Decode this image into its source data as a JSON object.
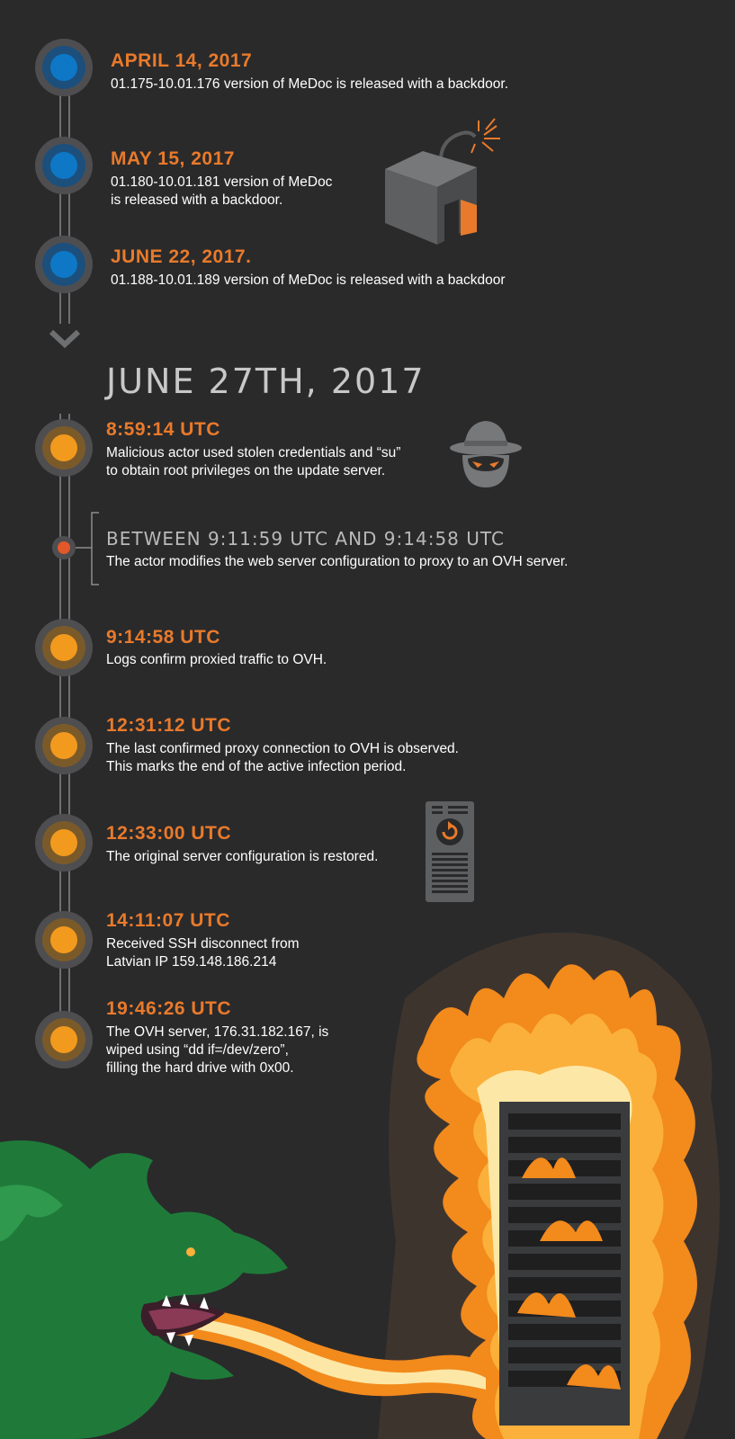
{
  "timeline_prior": [
    {
      "date": "APRIL 14, 2017",
      "desc": [
        "01.175-10.01.176 version of MeDoc is released with a backdoor."
      ]
    },
    {
      "date": "MAY 15, 2017",
      "desc": [
        "01.180-10.01.181 version of MeDoc",
        "is released with a backdoor."
      ]
    },
    {
      "date": "JUNE 22, 2017.",
      "desc": [
        "01.188-10.01.189 version of MeDoc is released with a backdoor"
      ]
    }
  ],
  "day_heading": "JUNE 27TH, 2017",
  "timeline_day": [
    {
      "time": "8:59:14 UTC",
      "desc": [
        "Malicious actor used stolen credentials and “su”",
        "to obtain root privileges on the update server."
      ]
    },
    {
      "time": "BETWEEN 9:11:59 UTC AND 9:14:58 UTC",
      "desc": [
        "The actor modifies the web server configuration to proxy to an OVH server."
      ]
    },
    {
      "time": "9:14:58 UTC",
      "desc": [
        "Logs confirm proxied traffic to OVH."
      ]
    },
    {
      "time": "12:31:12 UTC",
      "desc": [
        "The last confirmed proxy connection to OVH is observed.",
        "This marks the end of the active infection period."
      ]
    },
    {
      "time": "12:33:00 UTC",
      "desc": [
        "The original server configuration is restored."
      ]
    },
    {
      "time": "14:11:07 UTC",
      "desc": [
        "Received SSH disconnect from",
        "Latvian IP 159.148.186.214"
      ]
    },
    {
      "time": "19:46:26 UTC",
      "desc": [
        "The OVH server, 176.31.182.167, is",
        "wiped using “dd if=/dev/zero”,",
        "filling the hard drive with 0x00."
      ]
    }
  ],
  "icons": [
    "bomb-box-icon",
    "hacker-hat-icon",
    "server-restore-icon",
    "dragon-icon",
    "burning-server-icon"
  ],
  "colors": {
    "background": "#2a2a2b",
    "accent_orange": "#e97a2b",
    "node_blue": "#0e78c6",
    "node_orange": "#f29a1e",
    "dragon_green": "#1f7a3a"
  }
}
